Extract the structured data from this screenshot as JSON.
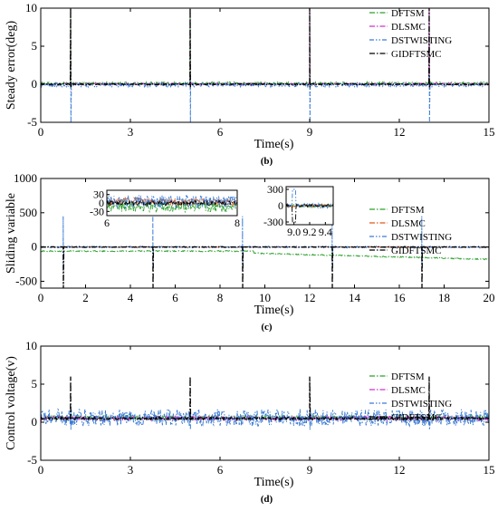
{
  "chart_data": [
    {
      "type": "line",
      "panel_label": "(b)",
      "xlabel": "Time(s)",
      "ylabel": "Steady error(deg)",
      "xlim": [
        0,
        15
      ],
      "ylim": [
        -5,
        10
      ],
      "xticks": [
        0,
        3,
        6,
        9,
        12,
        15
      ],
      "yticks": [
        -5,
        0,
        5,
        10
      ],
      "legend_position": "top-right",
      "spike_times": [
        1,
        5,
        9,
        13
      ],
      "series": [
        {
          "name": "DFTSM",
          "color": "#2ca02c",
          "dash": "dashdot",
          "baseline": 0.15,
          "noise": 0.15,
          "spike_up": 10,
          "spike_down": -0.6
        },
        {
          "name": "DLSMC",
          "color": "#cc33cc",
          "dash": "dashdot",
          "baseline": 0.05,
          "noise": 0.1,
          "spike_up": 10,
          "spike_down": -0.5
        },
        {
          "name": "DSTWISTING",
          "color": "#3a7bd5",
          "dash": "dashdotdot",
          "baseline": -0.1,
          "noise": 0.25,
          "spike_up": 1.5,
          "spike_down": -5
        },
        {
          "name": "GIDFTSMC",
          "color": "#000000",
          "dash": "dashdot",
          "baseline": 0.0,
          "noise": 0.08,
          "spike_up": 10,
          "spike_down": -0.4
        }
      ]
    },
    {
      "type": "line",
      "panel_label": "(c)",
      "xlabel": "Time(s)",
      "ylabel": "Sliding variable",
      "xlim": [
        0,
        20
      ],
      "ylim": [
        -600,
        1000
      ],
      "xticks": [
        0,
        2,
        4,
        6,
        8,
        10,
        12,
        14,
        16,
        18,
        20
      ],
      "yticks": [
        -500,
        0,
        500,
        1000
      ],
      "legend_position": "right",
      "spike_times": [
        1,
        5,
        9,
        13,
        17
      ],
      "series": [
        {
          "name": "DFTSM",
          "color": "#2ca02c",
          "dash": "dashdot",
          "baseline": -60,
          "noise": 8,
          "spike_up": 0,
          "spike_down": 0,
          "drift_after": 9.5,
          "drift_end": -180
        },
        {
          "name": "DLSMC",
          "color": "#e05a1a",
          "dash": "dashdot",
          "baseline": 0,
          "noise": 6,
          "spike_up": 0,
          "spike_down": 0
        },
        {
          "name": "DSTWISTING",
          "color": "#3a7bd5",
          "dash": "dashdotdot",
          "baseline": 0,
          "noise": 12,
          "spike_up": 450,
          "spike_down": -300
        },
        {
          "name": "GIDFTSMC",
          "color": "#000000",
          "dash": "dashdot",
          "baseline": 0,
          "noise": 4,
          "spike_up": 0,
          "spike_down": -600
        }
      ],
      "insets": [
        {
          "xlim": [
            6,
            8
          ],
          "ylim": [
            -45,
            45
          ],
          "xticks": [
            6,
            8
          ],
          "yticks": [
            -30,
            0,
            30
          ]
        },
        {
          "xlim": [
            8.9,
            9.5
          ],
          "ylim": [
            -350,
            350
          ],
          "xticks": [
            9.0,
            9.2,
            9.4
          ],
          "yticks": [
            -300,
            0,
            300
          ]
        }
      ]
    },
    {
      "type": "line",
      "panel_label": "(d)",
      "xlabel": "Time(s)",
      "ylabel": "Control voltage(v)",
      "xlim": [
        0,
        15
      ],
      "ylim": [
        -5,
        10
      ],
      "xticks": [
        0,
        3,
        6,
        9,
        12,
        15
      ],
      "yticks": [
        -5,
        0,
        5,
        10
      ],
      "legend_position": "top-right",
      "spike_times": [
        1,
        5,
        9,
        13
      ],
      "series": [
        {
          "name": "DFTSM",
          "color": "#2ca02c",
          "dash": "dashdot",
          "baseline": 0.6,
          "noise": 0.3,
          "spike_up": 0,
          "spike_down": 0
        },
        {
          "name": "DLSMC",
          "color": "#cc33cc",
          "dash": "dashdot",
          "baseline": 0.5,
          "noise": 0.3,
          "spike_up": 0,
          "spike_down": 0
        },
        {
          "name": "DSTWISTING",
          "color": "#3a7bd5",
          "dash": "dashdotdot",
          "baseline": 0.6,
          "noise": 1.1,
          "spike_up": 1.5,
          "spike_down": -1
        },
        {
          "name": "GIDFTSMC",
          "color": "#000000",
          "dash": "dashdot",
          "baseline": 0.5,
          "noise": 0.15,
          "spike_up": 6,
          "spike_down": 0
        }
      ]
    }
  ]
}
